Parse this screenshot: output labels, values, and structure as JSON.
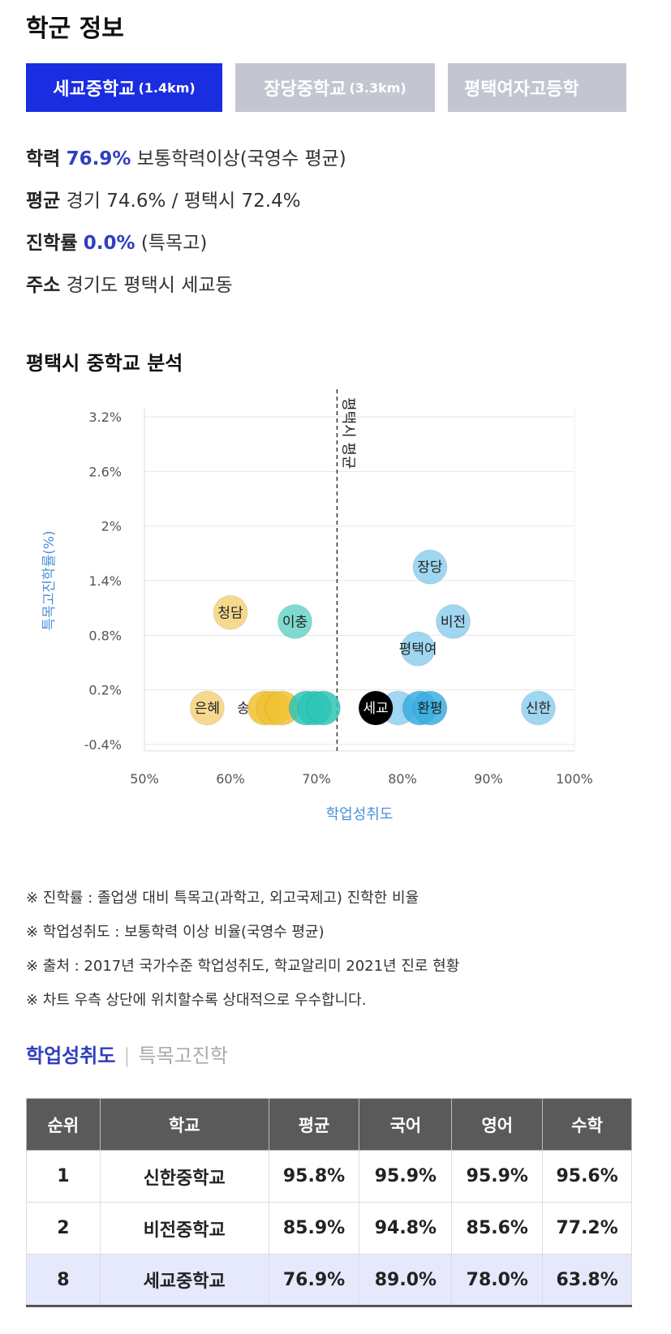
{
  "section_title": "학군 정보",
  "school_tabs": [
    {
      "name": "세교중학교",
      "distance": "(1.4km)",
      "active": true
    },
    {
      "name": "장당중학교",
      "distance": "(3.3km)",
      "active": false
    },
    {
      "name": "평택여자고등학",
      "distance": "",
      "active": false
    }
  ],
  "info": {
    "academic": {
      "label": "학력",
      "value": "76.9%",
      "suffix": "보통학력이상(국영수 평균)"
    },
    "average": {
      "label": "평균",
      "text": "경기 74.6% / 평택시 72.4%"
    },
    "advancement": {
      "label": "진학률",
      "value": "0.0%",
      "suffix": "(특목고)"
    },
    "address": {
      "label": "주소",
      "text": "경기도 평택시 세교동"
    }
  },
  "chart_title": "평택시 중학교 분석",
  "chart_data": {
    "type": "scatter",
    "xlabel": "학업성취도",
    "ylabel": "특목고진학률(%)",
    "xlim": [
      50,
      100
    ],
    "ylim": [
      -0.4,
      3.2
    ],
    "x_ticks": [
      "50%",
      "60%",
      "70%",
      "80%",
      "90%",
      "100%"
    ],
    "y_ticks": [
      "3.2%",
      "2.6%",
      "2%",
      "1.4%",
      "0.8%",
      "0.2%",
      "-0.4%"
    ],
    "reference_line": {
      "x": 72.4,
      "label": "평택시 평균"
    },
    "points": [
      {
        "label": "장당",
        "x": 83.2,
        "y": 1.55,
        "color": "#8ecfee"
      },
      {
        "label": "비전",
        "x": 85.9,
        "y": 0.95,
        "color": "#8ecfee"
      },
      {
        "label": "평택여",
        "x": 81.8,
        "y": 0.65,
        "color": "#8ecfee"
      },
      {
        "label": "청담",
        "x": 60.0,
        "y": 1.05,
        "color": "#f5d27a"
      },
      {
        "label": "이충",
        "x": 67.5,
        "y": 0.95,
        "color": "#68d3c8"
      },
      {
        "label": "은혜",
        "x": 57.3,
        "y": 0.0,
        "color": "#f5d27a"
      },
      {
        "label": "송",
        "x": 61.5,
        "y": 0.0,
        "color": "#ffffff"
      },
      {
        "label": "",
        "x": 64.0,
        "y": 0.0,
        "color": "#f1c232"
      },
      {
        "label": "",
        "x": 65.0,
        "y": 0.0,
        "color": "#f1c232"
      },
      {
        "label": "",
        "x": 66.0,
        "y": 0.0,
        "color": "#f1c232"
      },
      {
        "label": "",
        "x": 68.8,
        "y": 0.0,
        "color": "#2ec5b6"
      },
      {
        "label": "",
        "x": 69.8,
        "y": 0.0,
        "color": "#2ec5b6"
      },
      {
        "label": "",
        "x": 70.8,
        "y": 0.0,
        "color": "#2ec5b6"
      },
      {
        "label": "",
        "x": 79.5,
        "y": 0.0,
        "color": "#8ecfee"
      },
      {
        "label": "",
        "x": 82.0,
        "y": 0.0,
        "color": "#3aaee0"
      },
      {
        "label": "환평",
        "x": 83.2,
        "y": 0.0,
        "color": "#3aaee0"
      },
      {
        "label": "세교",
        "x": 76.9,
        "y": 0.0,
        "color": "#000000"
      },
      {
        "label": "신한",
        "x": 95.8,
        "y": 0.0,
        "color": "#8ecfee"
      }
    ]
  },
  "notes": [
    "※ 진학률 : 졸업생 대비 특목고(과학고, 외고국제고) 진학한 비율",
    "※ 학업성취도 : 보통학력 이상 비율(국영수 평균)",
    "※ 출처 : 2017년 국가수준 학업성취도, 학교알리미 2021년 진로 현황",
    "※ 차트 우측 상단에 위치할수록 상대적으로 우수합니다."
  ],
  "subtabs": {
    "active": "학업성취도",
    "inactive": "특목고진학"
  },
  "table": {
    "headers": [
      "순위",
      "학교",
      "평균",
      "국어",
      "영어",
      "수학"
    ],
    "rows": [
      [
        "1",
        "신한중학교",
        "95.8%",
        "95.9%",
        "95.9%",
        "95.6%"
      ],
      [
        "2",
        "비전중학교",
        "85.9%",
        "94.8%",
        "85.6%",
        "77.2%"
      ],
      [
        "8",
        "세교중학교",
        "76.9%",
        "89.0%",
        "78.0%",
        "63.8%"
      ]
    ]
  },
  "colors": {
    "accent": "#1a2de0",
    "highlight": "#2f3fbf",
    "axis_label": "#4a90d9"
  }
}
